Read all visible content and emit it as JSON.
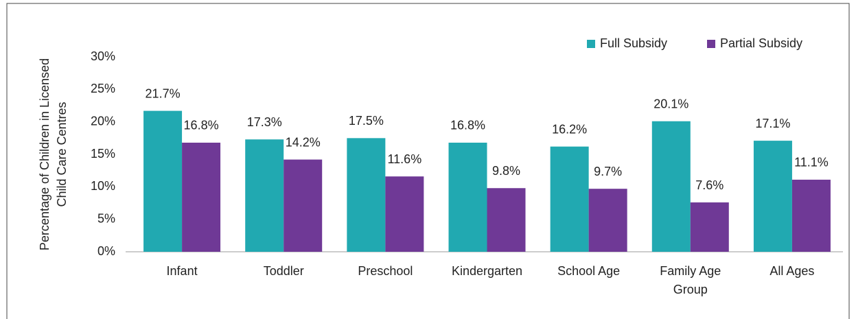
{
  "chart_data": {
    "type": "bar",
    "ylabel": [
      "Percentage of Children in Licensed",
      "Child Care Centres"
    ],
    "categories": [
      "Infant",
      "Toddler",
      "Preschool",
      "Kindergarten",
      "School Age",
      "Family Age Group",
      "All Ages"
    ],
    "series": [
      {
        "name": "Full Subsidy",
        "color": "#21a9b1",
        "values": [
          21.7,
          17.3,
          17.5,
          16.8,
          16.2,
          20.1,
          17.1
        ],
        "value_labels": [
          "21.7%",
          "17.3%",
          "17.5%",
          "16.8%",
          "16.2%",
          "20.1%",
          "17.1%"
        ]
      },
      {
        "name": "Partial Subsidy",
        "color": "#6f3996",
        "values": [
          16.8,
          14.2,
          11.6,
          9.8,
          9.7,
          7.6,
          11.1
        ],
        "value_labels": [
          "16.8%",
          "14.2%",
          "11.6%",
          "9.8%",
          "9.7%",
          "7.6%",
          "11.1%"
        ]
      }
    ],
    "ylim": [
      0,
      30
    ],
    "yticks": [
      {
        "value": 0,
        "label": "0%"
      },
      {
        "value": 5,
        "label": "5%"
      },
      {
        "value": 10,
        "label": "10%"
      },
      {
        "value": 15,
        "label": "15%"
      },
      {
        "value": 20,
        "label": "20%"
      },
      {
        "value": 25,
        "label": "25%"
      },
      {
        "value": 30,
        "label": "30%"
      }
    ],
    "grid": false,
    "legend": "top-right"
  }
}
